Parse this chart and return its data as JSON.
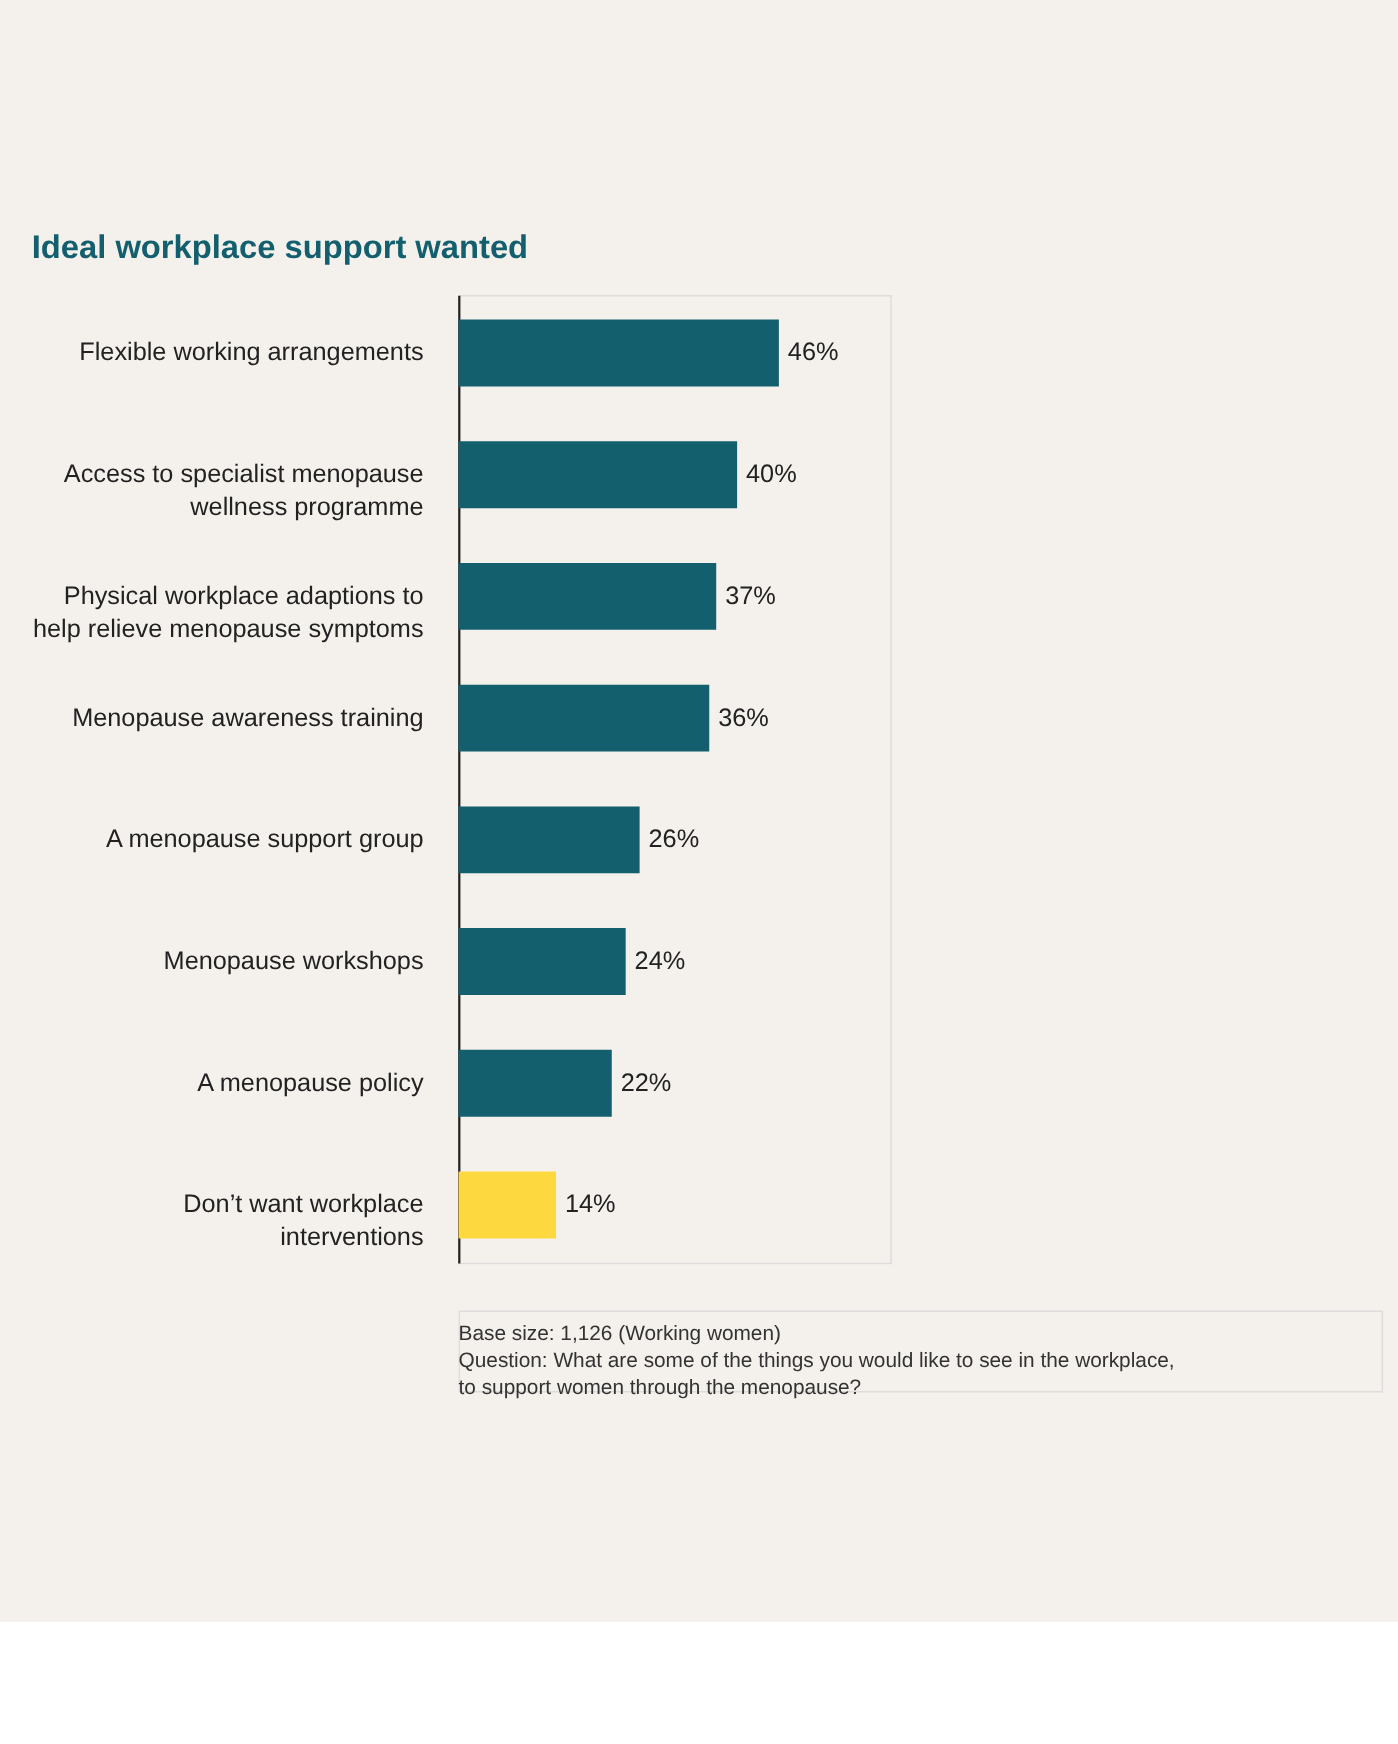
{
  "chart_data": {
    "type": "bar",
    "orientation": "horizontal",
    "title": "Ideal workplace support wanted",
    "categories": [
      "Flexible working arrangements",
      "Access to specialist menopause wellness programme",
      "Physical workplace adaptions to help relieve menopause symptoms",
      "Menopause awareness training",
      "A menopause support group",
      "Menopause workshops",
      "A menopause policy",
      "Don’t want workplace interventions"
    ],
    "values": [
      46,
      40,
      37,
      36,
      26,
      24,
      22,
      14
    ],
    "value_labels": [
      "46%",
      "40%",
      "37%",
      "36%",
      "26%",
      "24%",
      "22%",
      "14%"
    ],
    "colors": [
      "#135f6e",
      "#135f6e",
      "#135f6e",
      "#135f6e",
      "#135f6e",
      "#135f6e",
      "#135f6e",
      "#fdd93f"
    ],
    "xlim": [
      0,
      62
    ],
    "annotations": [
      "Base size: 1,126 (Working women)",
      "Question: What are some of the things you would like to see in the workplace, to support women through the menopause?"
    ]
  }
}
